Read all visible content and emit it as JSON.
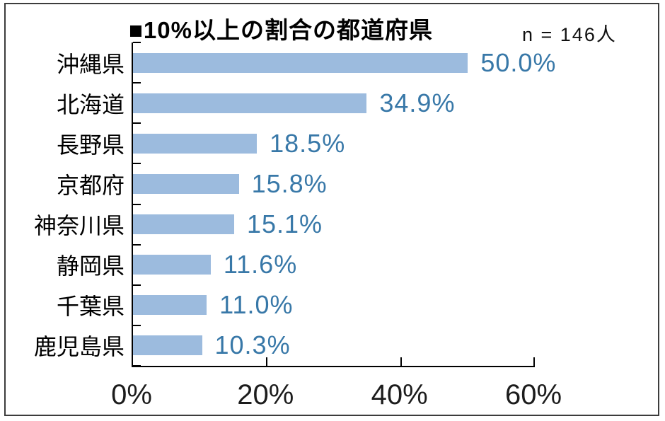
{
  "chart": {
    "title": "■10%以上の割合の都道府県",
    "sample_note": "n = 146人",
    "colors": {
      "bar_fill": "#9CBBDE",
      "value_label": "#3878A8",
      "axis": "#000000",
      "text": "#1c1c1c",
      "outer_border": "#3c3c3c"
    },
    "chart_data": {
      "type": "bar",
      "orientation": "horizontal",
      "title": "■10%以上の割合の都道府県",
      "annotation": "n = 146人",
      "categories": [
        "沖縄県",
        "北海道",
        "長野県",
        "京都府",
        "神奈川県",
        "静岡県",
        "千葉県",
        "鹿児島県"
      ],
      "values": [
        50.0,
        34.9,
        18.5,
        15.8,
        15.1,
        11.6,
        11.0,
        10.3
      ],
      "value_labels": [
        "50.0%",
        "34.9%",
        "18.5%",
        "15.8%",
        "15.1%",
        "11.6%",
        "11.0%",
        "10.3%"
      ],
      "xlim": [
        0,
        60
      ],
      "x_tick_values": [
        0,
        20,
        40,
        60
      ],
      "x_tick_labels": [
        "0%",
        "20%",
        "40%",
        "60%"
      ],
      "grid": "off",
      "legend": "none",
      "tick_style": "inside"
    }
  }
}
